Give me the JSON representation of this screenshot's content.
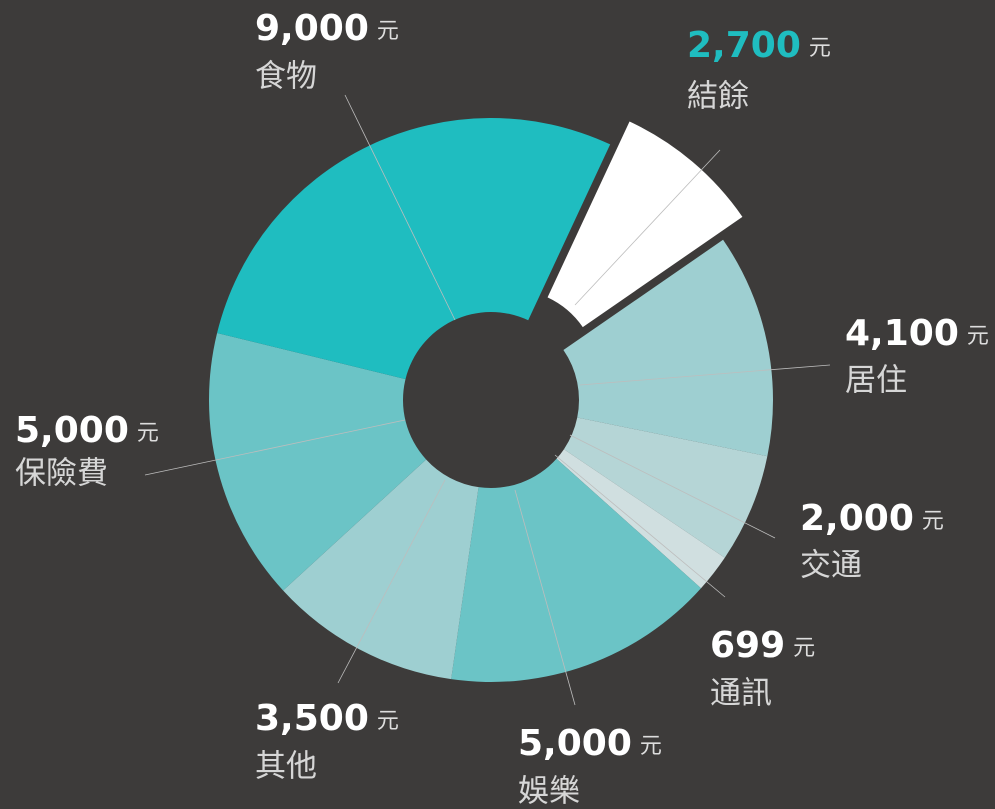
{
  "chart_data": {
    "type": "pie",
    "categories": [
      "結餘",
      "居住",
      "交通",
      "通訊",
      "娛樂",
      "其他",
      "保險費",
      "食物"
    ],
    "values": [
      2700,
      4100,
      2000,
      699,
      5000,
      3500,
      5000,
      9000
    ],
    "value_labels": [
      "2,700",
      "4,100",
      "2,000",
      "699",
      "5,000",
      "3,500",
      "5,000",
      "9,000"
    ],
    "unit": "元",
    "colors": [
      "#ffffff",
      "#9ecfd1",
      "#b5d5d6",
      "#d0dfe0",
      "#6bc4c6",
      "#9ecfd1",
      "#6bc4c6",
      "#1fbdc0"
    ],
    "exploded_index": 0,
    "accent_color": "#1fbdc0"
  }
}
